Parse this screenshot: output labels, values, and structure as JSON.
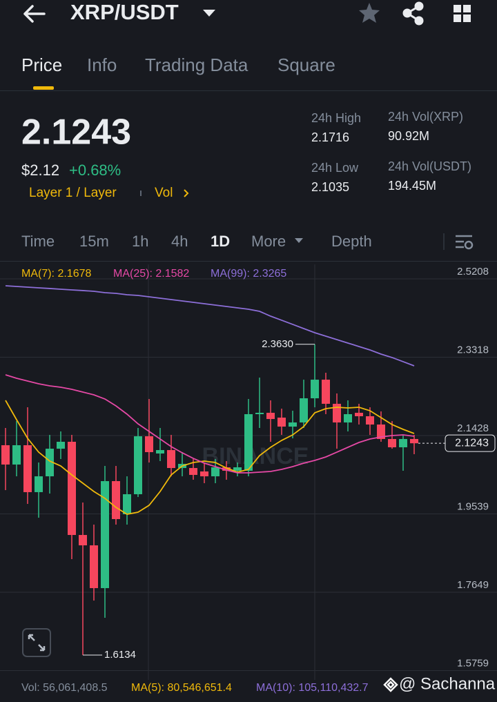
{
  "header": {
    "pair": "XRP/USDT"
  },
  "tabs": [
    "Price",
    "Info",
    "Trading Data",
    "Square"
  ],
  "price": {
    "last": "2.1243",
    "fiat": "$2.12",
    "change": "+0.68%",
    "tag": "Layer 1 / Layer",
    "vol_link": "Vol"
  },
  "stats": [
    {
      "label": "24h High",
      "value": "2.1716"
    },
    {
      "label": "24h Vol(XRP)",
      "value": "90.92M"
    },
    {
      "label": "24h Low",
      "value": "2.1035"
    },
    {
      "label": "24h Vol(USDT)",
      "value": "194.45M"
    }
  ],
  "intervals": [
    "Time",
    "15m",
    "1h",
    "4h",
    "1D",
    "More",
    "Depth"
  ],
  "chart_data": {
    "type": "candlestick",
    "watermark": "BINANCE",
    "up_color": "#2ebd85",
    "down_color": "#f6465d",
    "open": [
      2.1196,
      2.073,
      2.1196,
      2.0064,
      2.0446,
      2.1112,
      2.1279,
      1.9031,
      1.8781,
      1.7749,
      2.033,
      1.9531,
      2.0014,
      2.1412,
      2.0996,
      2.1079,
      2.0646,
      2.0646,
      2.0563,
      2.0446,
      2.0663,
      2.058,
      2.058,
      2.1945,
      2.1978,
      2.1862,
      2.1645,
      2.1745,
      2.2328,
      2.2777,
      2.2195,
      2.1745,
      2.1978,
      2.1895,
      2.1695,
      2.1346,
      2.1146,
      2.1346
    ],
    "high": [
      2.1612,
      2.1778,
      2.2111,
      2.0779,
      2.1445,
      2.1529,
      2.1445,
      1.9814,
      1.9281,
      2.0696,
      2.0696,
      2.0446,
      2.1612,
      2.2311,
      2.1612,
      2.1445,
      2.1029,
      2.0863,
      2.0779,
      2.0863,
      2.0813,
      2.0779,
      2.2311,
      2.2827,
      2.2278,
      2.2078,
      2.2028,
      2.2777,
      2.363,
      2.2944,
      2.2445,
      2.2278,
      2.2195,
      2.2111,
      2.2012,
      2.1778,
      2.1445,
      2.1445
    ],
    "low": [
      2.0113,
      2.0446,
      1.978,
      1.9447,
      2.003,
      2.0863,
      1.8448,
      1.6134,
      1.7449,
      1.7033,
      1.9281,
      1.9281,
      1.9947,
      2.0779,
      2.0813,
      2.0446,
      2.0446,
      2.0363,
      2.028,
      2.028,
      2.0363,
      2.0446,
      2.0446,
      2.1612,
      2.1279,
      2.1445,
      2.1362,
      2.1612,
      2.2111,
      2.1945,
      2.1112,
      2.1529,
      2.1695,
      2.1445,
      2.1279,
      2.1112,
      2.058,
      2.0979
    ],
    "close": [
      2.073,
      2.1196,
      2.0064,
      2.0446,
      2.1112,
      2.1279,
      1.9031,
      1.8781,
      1.7749,
      2.033,
      1.9414,
      2.0014,
      2.1412,
      2.1029,
      2.1079,
      2.0646,
      2.0746,
      2.048,
      2.0446,
      2.0663,
      2.058,
      2.0663,
      2.1945,
      2.1978,
      2.1828,
      2.1645,
      2.1745,
      2.2328,
      2.2777,
      2.2195,
      2.1745,
      2.1945,
      2.1895,
      2.1695,
      2.1346,
      2.1146,
      2.1346,
      2.1243
    ],
    "series": [
      {
        "name": "MA(7): 2.1678",
        "color": "#f0b90b",
        "values": [
          2.2278,
          2.1812,
          2.1362,
          2.1029,
          2.0813,
          2.0696,
          2.048,
          2.028,
          2.008,
          1.9914,
          1.9697,
          1.9531,
          1.9581,
          1.9747,
          2.008,
          2.048,
          2.0696,
          2.0779,
          2.0813,
          2.0779,
          2.0646,
          2.0546,
          2.0613,
          2.0946,
          2.1146,
          2.1312,
          2.1445,
          2.1645,
          2.1978,
          2.2078,
          2.2111,
          2.2095,
          2.2111,
          2.2028,
          2.1862,
          2.1695,
          2.1579,
          2.1479
        ]
      },
      {
        "name": "MA(25): 2.1582",
        "color": "#e649a6",
        "values": [
          2.2894,
          2.2811,
          2.2744,
          2.2678,
          2.2628,
          2.2594,
          2.2544,
          2.2478,
          2.2411,
          2.2311,
          2.2145,
          2.1945,
          2.1712,
          2.1529,
          2.1346,
          2.1162,
          2.1013,
          2.0879,
          2.0763,
          2.068,
          2.0596,
          2.053,
          2.053,
          2.0546,
          2.0563,
          2.0613,
          2.068,
          2.0763,
          2.0829,
          2.0913,
          2.1029,
          2.1146,
          2.1262,
          2.1346,
          2.1396,
          2.1429,
          2.1445,
          2.1412
        ]
      },
      {
        "name": "MA(99): 2.3265",
        "color": "#8d6fd9",
        "values": [
          2.5042,
          2.5025,
          2.5009,
          2.4992,
          2.4976,
          2.4959,
          2.4942,
          2.4926,
          2.4909,
          2.4876,
          2.4859,
          2.4826,
          2.4809,
          2.4776,
          2.4742,
          2.4709,
          2.4676,
          2.4642,
          2.4609,
          2.4576,
          2.4542,
          2.4509,
          2.4476,
          2.4426,
          2.4309,
          2.421,
          2.411,
          2.401,
          2.391,
          2.3827,
          2.3743,
          2.366,
          2.3577,
          2.3494,
          2.3394,
          2.3311,
          2.3211,
          2.3111
        ]
      }
    ],
    "ylim": [
      1.5535,
      2.5558
    ],
    "yticks": [
      2.5208,
      2.3318,
      2.1428,
      1.9539,
      1.7649,
      1.5759
    ],
    "grid": true,
    "last_price": 2.1243,
    "annotations": [
      {
        "value": 2.363,
        "label": "2.3630"
      },
      {
        "value": 1.6134,
        "label": "1.6134"
      }
    ]
  },
  "volume": {
    "vol": "Vol: 56,061,408.5",
    "ma5": "MA(5): 80,546,651.4",
    "ma10": "MA(10): 105,110,432.7"
  },
  "watermark": "@ Sachanna"
}
